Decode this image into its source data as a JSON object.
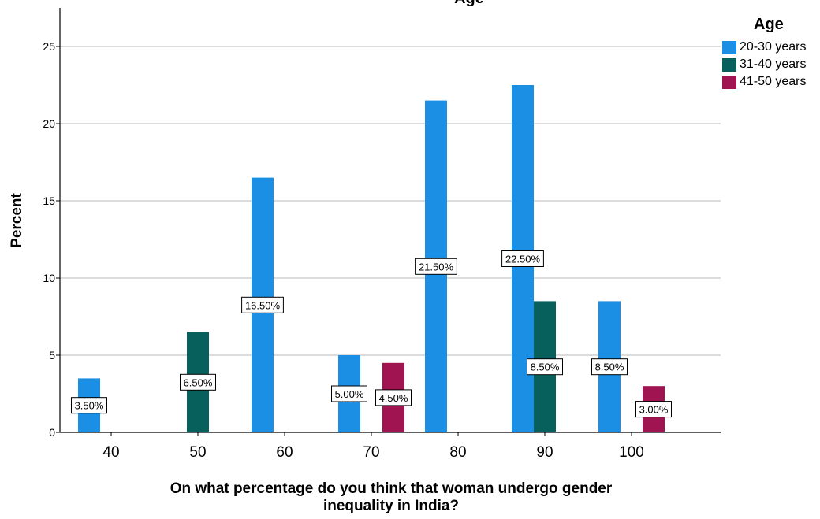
{
  "chart_data": {
    "type": "bar",
    "title": "Age",
    "xlabel": "On what percentage do you think that woman undergo gender inequality in India?",
    "ylabel": "Percent",
    "categories": [
      "40",
      "50",
      "60",
      "70",
      "80",
      "90",
      "100"
    ],
    "yticks": [
      "0",
      "5",
      "10",
      "15",
      "20",
      "25"
    ],
    "ylim": [
      0,
      27.5
    ],
    "grid": true,
    "legend": {
      "title": "Age",
      "placement": "top-right"
    },
    "series": [
      {
        "name": "20-30 years",
        "color": "#1a8fe3",
        "values": [
          3.5,
          null,
          16.5,
          5.0,
          21.5,
          22.5,
          8.5
        ],
        "labels": [
          "3.50%",
          "",
          "16.50%",
          "5.00%",
          "21.50%",
          "22.50%",
          "8.50%"
        ]
      },
      {
        "name": "31-40 years",
        "color": "#08605c",
        "values": [
          null,
          6.5,
          null,
          null,
          null,
          8.5,
          null
        ],
        "labels": [
          "",
          "6.50%",
          "",
          "",
          "",
          "8.50%",
          ""
        ]
      },
      {
        "name": "41-50 years",
        "color": "#a01452",
        "values": [
          null,
          null,
          null,
          4.5,
          null,
          null,
          3.0
        ],
        "labels": [
          "",
          "",
          "",
          "4.50%",
          "",
          "",
          "3.00%"
        ]
      }
    ]
  }
}
